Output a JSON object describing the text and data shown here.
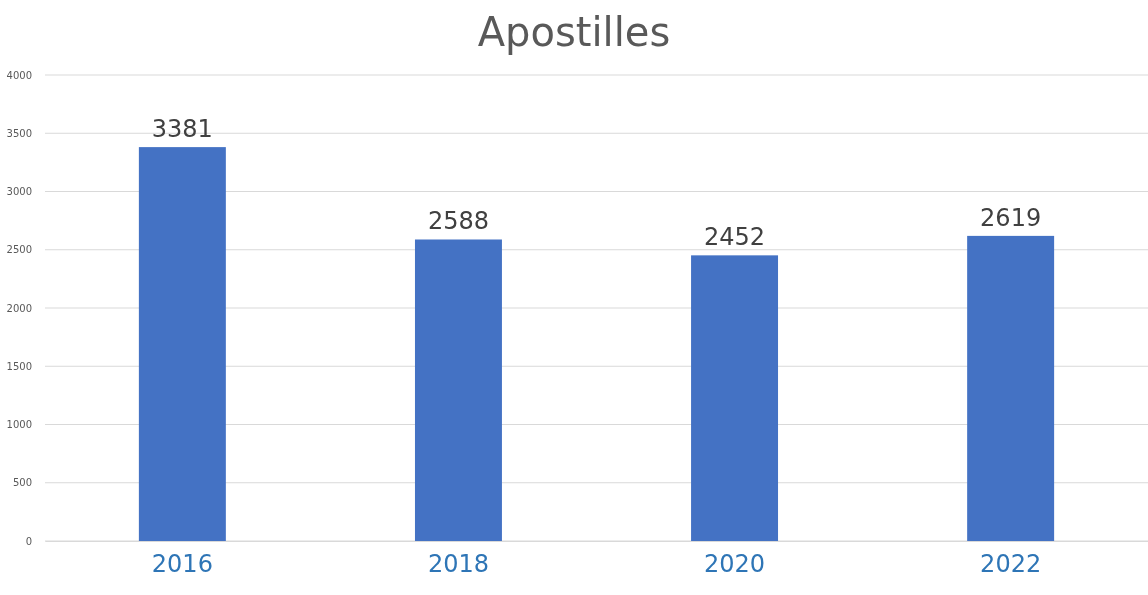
{
  "chart_data": {
    "type": "bar",
    "title": "Apostilles",
    "categories": [
      "2016",
      "2018",
      "2020",
      "2022"
    ],
    "values": [
      3381,
      2588,
      2452,
      2619
    ],
    "color": "#4472c4",
    "ylim": [
      0,
      4000
    ],
    "yticks": [
      0,
      500,
      1000,
      1500,
      2000,
      2500,
      3000,
      3500,
      4000
    ],
    "grid": "y",
    "data_labels": true
  }
}
